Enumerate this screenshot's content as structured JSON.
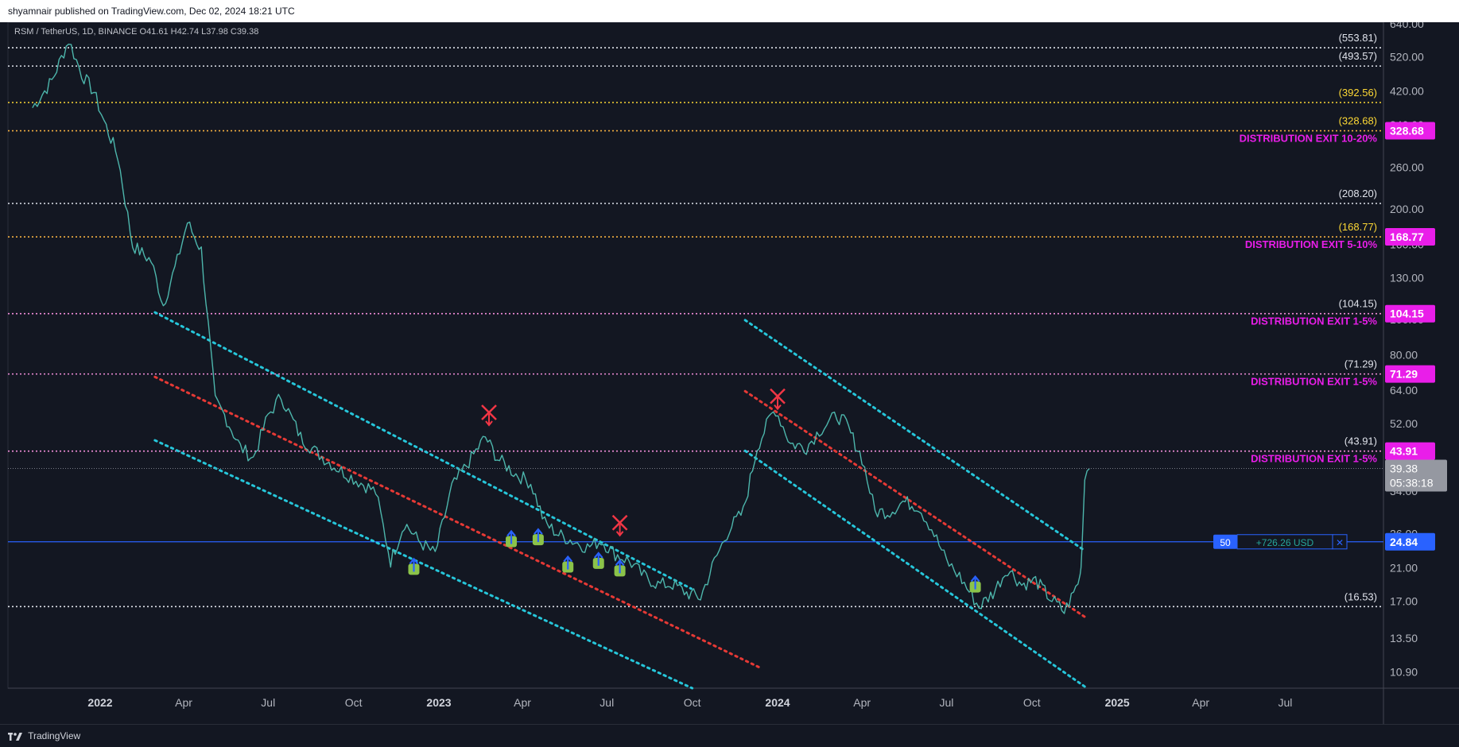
{
  "header": {
    "title": "shyamnair published on TradingView.com, Dec 02, 2024 18:21 UTC"
  },
  "symbol_line": "RSM / TetherUS, 1D, BINANCE  O41.61  H42.74  L37.98  C39.38",
  "footer": {
    "brand": "TradingView"
  },
  "colors": {
    "bg": "#131722",
    "price": "#4db6ac",
    "channel": "#26c6da",
    "mid": "#e53935",
    "magenta": "#e91ee9",
    "yellow": "#fdd835",
    "white": "#e0e3eb",
    "blue": "#2962ff"
  },
  "chart_data": {
    "type": "line",
    "title": "RSM / TetherUS, 1D, BINANCE",
    "y_scale": "log",
    "ylim": [
      9.9,
      650
    ],
    "x_tick_labels": [
      "2022",
      "Apr",
      "Jul",
      "Oct",
      "2023",
      "Apr",
      "Jul",
      "Oct",
      "2024",
      "Apr",
      "Jul",
      "Oct",
      "2025",
      "Apr",
      "Jul"
    ],
    "x_tick_dates": [
      "2022-01-01",
      "2022-04-01",
      "2022-07-01",
      "2022-10-01",
      "2023-01-01",
      "2023-04-01",
      "2023-07-01",
      "2023-10-01",
      "2024-01-01",
      "2024-04-01",
      "2024-07-01",
      "2024-10-01",
      "2025-01-01",
      "2025-04-01",
      "2025-07-01"
    ],
    "y_ticks": [
      10.9,
      13.5,
      17.0,
      21.0,
      26.0,
      34.0,
      52.0,
      64.0,
      80.0,
      100.0,
      130.0,
      160.0,
      200.0,
      260.0,
      340.0,
      420.0,
      520.0,
      640.0
    ],
    "y_tick_labels": [
      "10.90",
      "13.50",
      "17.00",
      "21.00",
      "26.00",
      "34.00",
      "52.00",
      "64.00",
      "80.00",
      "100.00",
      "130.00",
      "160.00",
      "200.00",
      "260.00",
      "340.00",
      "420.00",
      "520.00",
      "640.00"
    ],
    "series": [
      {
        "x": [
          "2021-10-20",
          "2021-11-10",
          "2021-11-28",
          "2021-12-12",
          "2021-12-25",
          "2022-01-05",
          "2022-01-20",
          "2022-02-05",
          "2022-02-25",
          "2022-03-10",
          "2022-03-25",
          "2022-04-05",
          "2022-04-20",
          "2022-05-05",
          "2022-05-15",
          "2022-06-01",
          "2022-06-15",
          "2022-07-01",
          "2022-07-15",
          "2022-08-05",
          "2022-08-20",
          "2022-09-10",
          "2022-10-01",
          "2022-10-25",
          "2022-11-10",
          "2022-11-25",
          "2022-12-10",
          "2022-12-28",
          "2023-01-15",
          "2023-02-05",
          "2023-02-20",
          "2023-03-05",
          "2023-03-25",
          "2023-04-10",
          "2023-04-25",
          "2023-05-10",
          "2023-05-25",
          "2023-06-10",
          "2023-06-25",
          "2023-07-10",
          "2023-07-25",
          "2023-08-10",
          "2023-08-25",
          "2023-09-10",
          "2023-09-25",
          "2023-10-10",
          "2023-10-25",
          "2023-11-10",
          "2023-11-25",
          "2023-12-10",
          "2023-12-25",
          "2023-12-30",
          "2024-01-15",
          "2024-02-01",
          "2024-02-15",
          "2024-03-05",
          "2024-03-15",
          "2024-04-01",
          "2024-04-15",
          "2024-05-01",
          "2024-05-15",
          "2024-06-01",
          "2024-06-15",
          "2024-07-01",
          "2024-07-15",
          "2024-08-05",
          "2024-08-20",
          "2024-09-05",
          "2024-09-20",
          "2024-10-05",
          "2024-10-20",
          "2024-11-05",
          "2024-11-15",
          "2024-11-22",
          "2024-11-24",
          "2024-11-27",
          "2024-12-02"
        ],
        "values": [
          380,
          450,
          580,
          470,
          420,
          350,
          280,
          160,
          145,
          110,
          145,
          185,
          155,
          60,
          55,
          45,
          42,
          55,
          62,
          48,
          44,
          40,
          37,
          34,
          22,
          28,
          25,
          23,
          35,
          42,
          48,
          42,
          38,
          36,
          28,
          26,
          25,
          24,
          25,
          23,
          22,
          20,
          19,
          19,
          18,
          17.5,
          22,
          27,
          30,
          45,
          55,
          57,
          46,
          45,
          50,
          55,
          52,
          42,
          30,
          30,
          32,
          31,
          27,
          22,
          20,
          16.5,
          18,
          21,
          19,
          19.5,
          17.5,
          16,
          18,
          20,
          24,
          38,
          39.38
        ]
      }
    ],
    "horizontal_levels": [
      {
        "label": "(553.81)",
        "value": 553.81,
        "color": "white"
      },
      {
        "label": "(493.57)",
        "value": 493.57,
        "color": "white"
      },
      {
        "label": "(392.56)",
        "value": 392.56,
        "color": "yellow"
      },
      {
        "label": "(328.68)",
        "value": 328.68,
        "color": "orange",
        "badge": "328.68",
        "note": "DISTRIBUTION EXIT 10-20%"
      },
      {
        "label": "(208.20)",
        "value": 208.2,
        "color": "white"
      },
      {
        "label": "(168.77)",
        "value": 168.77,
        "color": "orange",
        "badge": "168.77",
        "note": "DISTRIBUTION EXIT 5-10%"
      },
      {
        "label": "(104.15)",
        "value": 104.15,
        "color": "pink",
        "badge": "104.15",
        "note": "DISTRIBUTION EXIT 1-5%"
      },
      {
        "label": "(71.29)",
        "value": 71.29,
        "color": "pink",
        "badge": "71.29",
        "note": "DISTRIBUTION EXIT 1-5%"
      },
      {
        "label": "(43.91)",
        "value": 43.91,
        "color": "pink",
        "badge": "43.91",
        "note": "DISTRIBUTION EXIT 1-5%"
      },
      {
        "label": "(16.53)",
        "value": 16.53,
        "color": "white"
      }
    ],
    "current_price": {
      "value": 39.38,
      "label": "39.38",
      "countdown": "05:38:18"
    },
    "position_line": {
      "value": 24.84,
      "label": "24.84",
      "qty": "50",
      "pnl": "+726.26 USD",
      "close": "✕"
    },
    "channels": [
      {
        "role": "upper",
        "color": "channel",
        "from": [
          "2022-03-01",
          105
        ],
        "to": [
          "2023-09-30",
          18.5
        ]
      },
      {
        "role": "mid",
        "color": "mid",
        "from": [
          "2022-03-01",
          70
        ],
        "to": [
          "2023-12-15",
          11.2
        ]
      },
      {
        "role": "lower",
        "color": "channel",
        "from": [
          "2022-03-01",
          47
        ],
        "to": [
          "2023-10-01",
          9.9
        ]
      },
      {
        "role": "upper",
        "color": "channel",
        "from": [
          "2023-11-27",
          100
        ],
        "to": [
          "2024-11-27",
          23.5
        ]
      },
      {
        "role": "mid",
        "color": "mid",
        "from": [
          "2023-11-27",
          64
        ],
        "to": [
          "2024-11-27",
          15.5
        ]
      },
      {
        "role": "lower",
        "color": "channel",
        "from": [
          "2023-11-27",
          44
        ],
        "to": [
          "2024-11-27",
          10
        ]
      }
    ],
    "markers": [
      {
        "kind": "sell",
        "x": "2023-02-24",
        "y": 56
      },
      {
        "kind": "sell",
        "x": "2023-07-15",
        "y": 28
      },
      {
        "kind": "sell",
        "x": "2024-01-01",
        "y": 62
      },
      {
        "kind": "buy",
        "x": "2022-12-05",
        "y": 21
      },
      {
        "kind": "buy",
        "x": "2023-03-20",
        "y": 25
      },
      {
        "kind": "buy",
        "x": "2023-04-18",
        "y": 25.3
      },
      {
        "kind": "buy",
        "x": "2023-05-20",
        "y": 21.3
      },
      {
        "kind": "buy",
        "x": "2023-06-22",
        "y": 21.8
      },
      {
        "kind": "buy",
        "x": "2023-07-15",
        "y": 20.8
      },
      {
        "kind": "buy",
        "x": "2024-08-01",
        "y": 18.8
      }
    ]
  }
}
